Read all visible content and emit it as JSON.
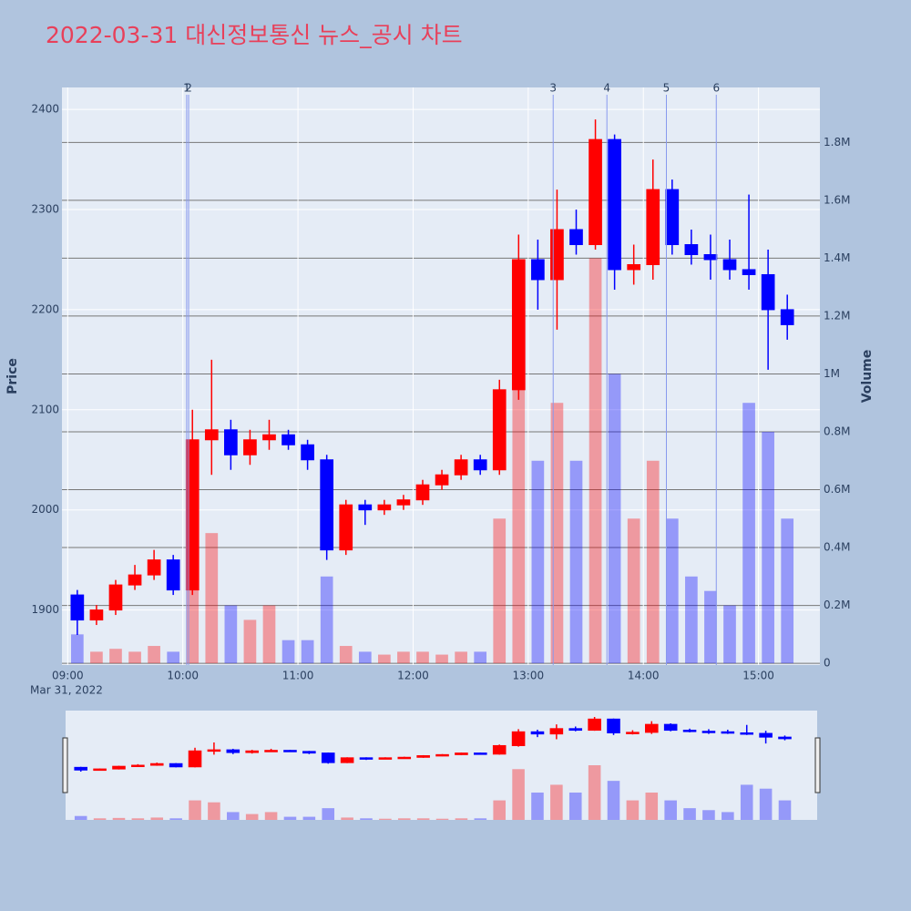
{
  "chart_data": {
    "type": "candlestick",
    "title": "2022-03-31 대신정보통신 뉴스_공시 차트",
    "ylabel": "Price",
    "y2label": "Volume",
    "date_label": "Mar 31, 2022",
    "x": [
      "09:00",
      "09:10",
      "09:20",
      "09:30",
      "09:40",
      "09:50",
      "10:00",
      "10:10",
      "10:20",
      "10:30",
      "10:40",
      "10:50",
      "11:00",
      "11:10",
      "11:20",
      "11:30",
      "11:40",
      "11:50",
      "12:00",
      "12:10",
      "12:20",
      "12:30",
      "12:40",
      "12:50",
      "13:00",
      "13:10",
      "13:20",
      "13:30",
      "13:40",
      "13:50",
      "14:00",
      "14:10",
      "14:20",
      "14:30",
      "14:40",
      "14:50",
      "15:00",
      "15:10"
    ],
    "series": [
      {
        "type": "candlestick",
        "increasing_color": "#ff0000",
        "decreasing_color": "#0000ff",
        "open": [
          1915,
          1890,
          1900,
          1925,
          1935,
          1950,
          1920,
          2070,
          2080,
          2055,
          2070,
          2075,
          2065,
          2050,
          1960,
          2005,
          2000,
          2005,
          2010,
          2025,
          2035,
          2050,
          2040,
          2120,
          2250,
          2230,
          2280,
          2265,
          2370,
          2240,
          2245,
          2320,
          2265,
          2255,
          2250,
          2240,
          2235,
          2200
        ],
        "high": [
          1920,
          1905,
          1930,
          1945,
          1960,
          1955,
          2100,
          2150,
          2090,
          2080,
          2090,
          2080,
          2070,
          2055,
          2010,
          2010,
          2010,
          2015,
          2030,
          2040,
          2055,
          2055,
          2130,
          2275,
          2270,
          2320,
          2300,
          2390,
          2375,
          2265,
          2350,
          2330,
          2280,
          2275,
          2270,
          2315,
          2260,
          2215
        ],
        "low": [
          1875,
          1885,
          1895,
          1920,
          1930,
          1915,
          1915,
          2035,
          2040,
          2045,
          2060,
          2060,
          2040,
          1950,
          1955,
          1985,
          1995,
          2000,
          2005,
          2020,
          2030,
          2035,
          2035,
          2110,
          2200,
          2180,
          2255,
          2260,
          2220,
          2225,
          2230,
          2255,
          2245,
          2230,
          2230,
          2220,
          2140,
          2170
        ],
        "close": [
          1890,
          1900,
          1925,
          1935,
          1950,
          1920,
          2070,
          2080,
          2055,
          2070,
          2075,
          2065,
          2050,
          1960,
          2005,
          2000,
          2005,
          2010,
          2025,
          2035,
          2050,
          2040,
          2120,
          2250,
          2230,
          2280,
          2265,
          2370,
          2240,
          2245,
          2320,
          2265,
          2255,
          2250,
          2240,
          2235,
          2200,
          2185
        ]
      },
      {
        "type": "bar",
        "axis": "y2",
        "opacity": 0.35,
        "values": [
          100000,
          40000,
          50000,
          40000,
          60000,
          40000,
          500000,
          450000,
          200000,
          150000,
          200000,
          80000,
          80000,
          300000,
          60000,
          40000,
          30000,
          40000,
          40000,
          30000,
          40000,
          40000,
          500000,
          1300000,
          700000,
          900000,
          700000,
          1400000,
          1000000,
          500000,
          700000,
          500000,
          300000,
          250000,
          200000,
          900000,
          800000,
          500000
        ]
      }
    ],
    "news": [
      {
        "x": "10:02",
        "label": "1"
      },
      {
        "x": "10:03",
        "label": "2"
      },
      {
        "x": "13:13",
        "label": "3"
      },
      {
        "x": "13:41",
        "label": "4"
      },
      {
        "x": "14:12",
        "label": "5"
      },
      {
        "x": "14:38",
        "label": "6"
      }
    ],
    "xlim": [
      "08:57",
      "15:32"
    ],
    "xticks": [
      "09:00",
      "10:00",
      "11:00",
      "12:00",
      "13:00",
      "14:00",
      "15:00"
    ],
    "ylim": [
      1845,
      2422
    ],
    "yticks": [
      1900,
      2000,
      2100,
      2200,
      2300,
      2400
    ],
    "y2lim": [
      -6000,
      1990000
    ],
    "y2ticks": [
      0,
      {
        "value": 200000,
        "label": "0.2M"
      },
      {
        "value": 400000,
        "label": "0.4M"
      },
      {
        "value": 600000,
        "label": "0.6M"
      },
      {
        "value": 800000,
        "label": "0.8M"
      },
      {
        "value": 1000000,
        "label": "1M"
      },
      {
        "value": 1200000,
        "label": "1.2M"
      },
      {
        "value": 1400000,
        "label": "1.4M"
      },
      {
        "value": 1600000,
        "label": "1.6M"
      },
      {
        "value": 1800000,
        "label": "1.8M"
      }
    ],
    "grid": true,
    "rangeslider": true
  }
}
